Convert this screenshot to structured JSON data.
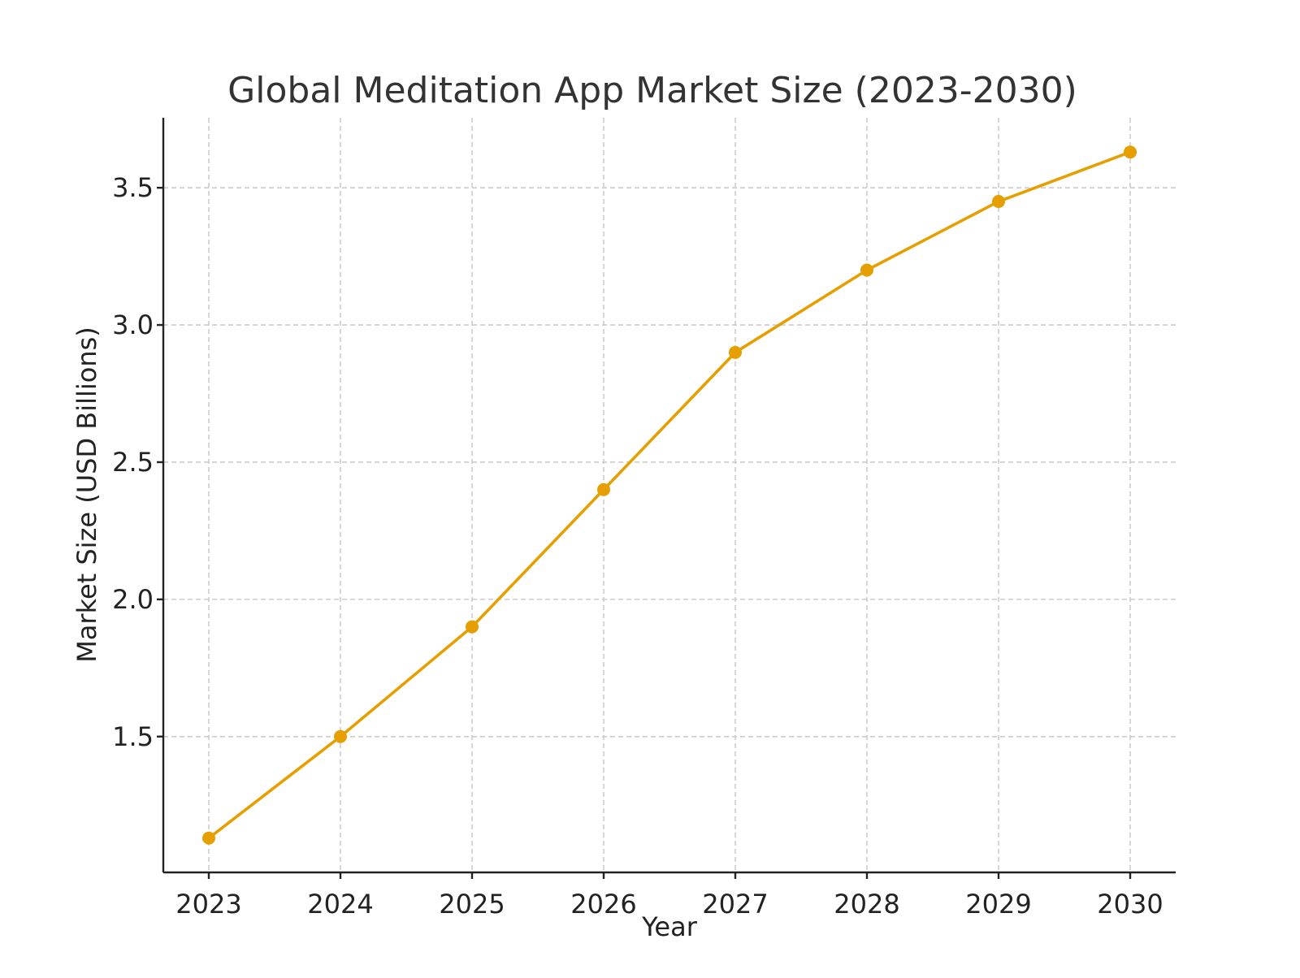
{
  "chart_data": {
    "type": "line",
    "title": "Global Meditation App Market Size (2023-2030)",
    "xlabel": "Year",
    "ylabel": "Market Size (USD Billions)",
    "x": [
      "2023",
      "2024",
      "2025",
      "2026",
      "2027",
      "2028",
      "2029",
      "2030"
    ],
    "series": [
      {
        "values": [
          1.13,
          1.5,
          1.9,
          2.4,
          2.9,
          3.2,
          3.45,
          3.63
        ],
        "color": "#E69F00",
        "marker": "circle"
      }
    ],
    "yticks": [
      "1.5",
      "2.0",
      "2.5",
      "3.0",
      "3.5"
    ],
    "ylim": [
      1.005,
      3.755
    ],
    "grid": true,
    "grid_style": "dashed",
    "axis_spines": "left-bottom"
  }
}
